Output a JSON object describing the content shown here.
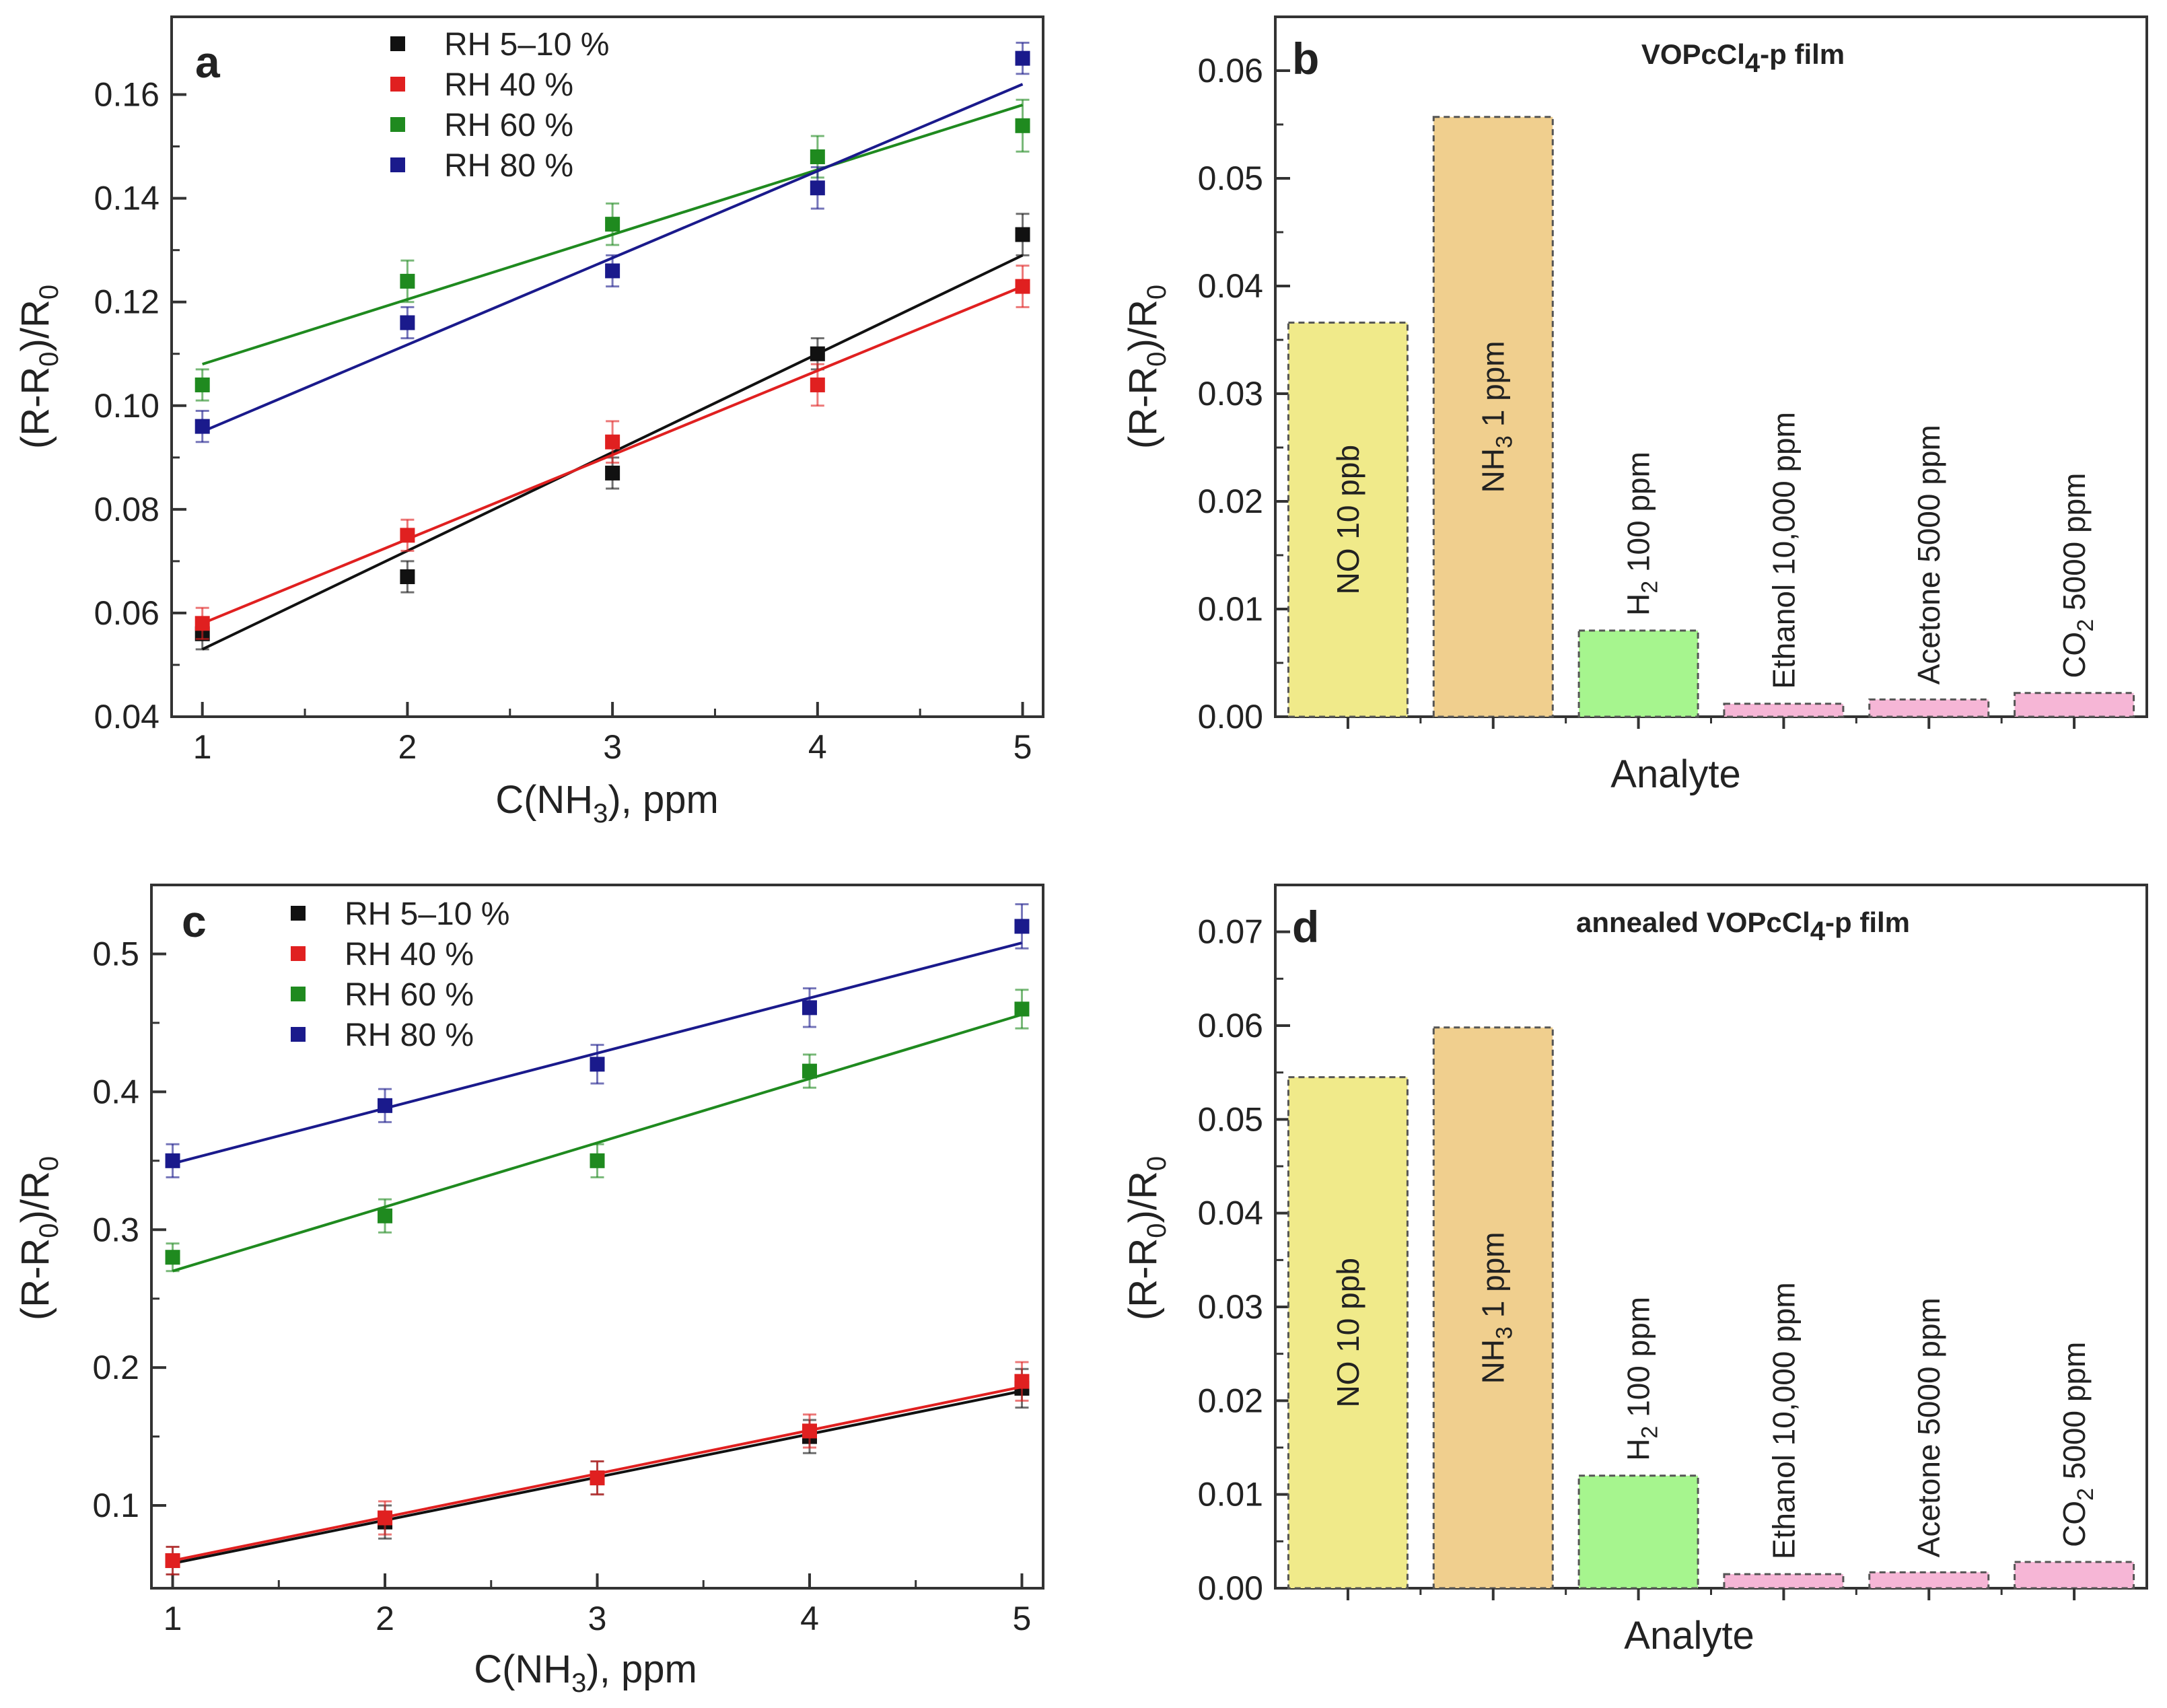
{
  "chart_data": [
    {
      "id": "a",
      "type": "scatter",
      "panel_label": "a",
      "xlabel": "C(NH3), ppm",
      "ylabel": "(R-R0)/R0",
      "xlim": [
        0.85,
        5.1
      ],
      "ylim": [
        0.04,
        0.175
      ],
      "xticks": [
        "1",
        "2",
        "3",
        "4",
        "5"
      ],
      "yticks": [
        "0.04",
        "0.06",
        "0.08",
        "0.10",
        "0.12",
        "0.14",
        "0.16"
      ],
      "legend_position": "top-left",
      "x": [
        1,
        2,
        3,
        4,
        5
      ],
      "series": [
        {
          "name": "RH 5–10 %",
          "color": "#111111",
          "values": [
            0.056,
            0.067,
            0.087,
            0.11,
            0.133
          ],
          "errors": [
            0.003,
            0.003,
            0.003,
            0.003,
            0.004
          ],
          "fit": [
            0.053,
            0.129
          ]
        },
        {
          "name": "RH 40 %",
          "color": "#e02020",
          "values": [
            0.058,
            0.075,
            0.093,
            0.104,
            0.123
          ],
          "errors": [
            0.003,
            0.003,
            0.004,
            0.004,
            0.004
          ],
          "fit": [
            0.058,
            0.123
          ]
        },
        {
          "name": "RH 60 %",
          "color": "#1f8a1f",
          "values": [
            0.104,
            0.124,
            0.135,
            0.148,
            0.154
          ],
          "errors": [
            0.003,
            0.004,
            0.004,
            0.004,
            0.005
          ],
          "fit": [
            0.108,
            0.158
          ]
        },
        {
          "name": "RH 80 %",
          "color": "#1a1a8c",
          "values": [
            0.096,
            0.116,
            0.126,
            0.142,
            0.167
          ],
          "errors": [
            0.003,
            0.003,
            0.003,
            0.004,
            0.003
          ],
          "fit": [
            0.095,
            0.162
          ]
        }
      ]
    },
    {
      "id": "b",
      "type": "bar",
      "panel_label": "b",
      "title": "VOPcCl4-p film",
      "xlabel": "Analyte",
      "ylabel": "(R-R0)/R0",
      "ylim": [
        0,
        0.065
      ],
      "yticks": [
        "0.00",
        "0.01",
        "0.02",
        "0.03",
        "0.04",
        "0.05",
        "0.06"
      ],
      "categories": [
        "NO 10 ppb",
        "NH3 1 ppm",
        "H2 100 ppm",
        "Ethanol 10,000 ppm",
        "Acetone 5000 ppm",
        "CO2 5000 ppm"
      ],
      "values": [
        0.0366,
        0.0557,
        0.008,
        0.0012,
        0.0016,
        0.0022
      ],
      "colors": [
        "#f0ea8a",
        "#f0cf8e",
        "#a6f58e",
        "#f6b6d6",
        "#f6b6d6",
        "#f6b6d6"
      ]
    },
    {
      "id": "c",
      "type": "scatter",
      "panel_label": "c",
      "xlabel": "C(NH3), ppm",
      "ylabel": "(R-R0)/R0",
      "xlim": [
        0.9,
        5.1
      ],
      "ylim": [
        0.04,
        0.55
      ],
      "xticks": [
        "1",
        "2",
        "3",
        "4",
        "5"
      ],
      "yticks": [
        "0.1",
        "0.2",
        "0.3",
        "0.4",
        "0.5"
      ],
      "legend_position": "top-left",
      "x": [
        1,
        2,
        3,
        4,
        5
      ],
      "series": [
        {
          "name": "RH 5–10 %",
          "color": "#111111",
          "values": [
            0.06,
            0.088,
            0.12,
            0.15,
            0.185
          ],
          "errors": [
            0.01,
            0.012,
            0.012,
            0.012,
            0.014
          ],
          "fit": [
            0.058,
            0.183
          ]
        },
        {
          "name": "RH 40 %",
          "color": "#e02020",
          "values": [
            0.06,
            0.091,
            0.12,
            0.154,
            0.19
          ],
          "errors": [
            0.01,
            0.012,
            0.012,
            0.012,
            0.014
          ],
          "fit": [
            0.06,
            0.186
          ]
        },
        {
          "name": "RH 60 %",
          "color": "#1f8a1f",
          "values": [
            0.28,
            0.31,
            0.35,
            0.415,
            0.46
          ],
          "errors": [
            0.01,
            0.012,
            0.012,
            0.012,
            0.014
          ],
          "fit": [
            0.27,
            0.456
          ]
        },
        {
          "name": "RH 80 %",
          "color": "#1a1a8c",
          "values": [
            0.35,
            0.39,
            0.42,
            0.461,
            0.52
          ],
          "errors": [
            0.012,
            0.012,
            0.014,
            0.014,
            0.016
          ],
          "fit": [
            0.348,
            0.508
          ]
        }
      ]
    },
    {
      "id": "d",
      "type": "bar",
      "panel_label": "d",
      "title": "annealed VOPcCl4-p film",
      "xlabel": "Analyte",
      "ylabel": "(R-R0)/R0",
      "ylim": [
        0,
        0.075
      ],
      "yticks": [
        "0.00",
        "0.01",
        "0.02",
        "0.03",
        "0.04",
        "0.05",
        "0.06",
        "0.07"
      ],
      "categories": [
        "NO 10 ppb",
        "NH3 1 ppm",
        "H2 100 ppm",
        "Ethanol 10,000 ppm",
        "Acetone 5000 ppm",
        "CO2 5000 ppm"
      ],
      "values": [
        0.0545,
        0.0598,
        0.012,
        0.0015,
        0.0017,
        0.0028
      ],
      "colors": [
        "#f0ea8a",
        "#f0cf8e",
        "#a6f58e",
        "#f6b6d6",
        "#f6b6d6",
        "#f6b6d6"
      ]
    }
  ]
}
